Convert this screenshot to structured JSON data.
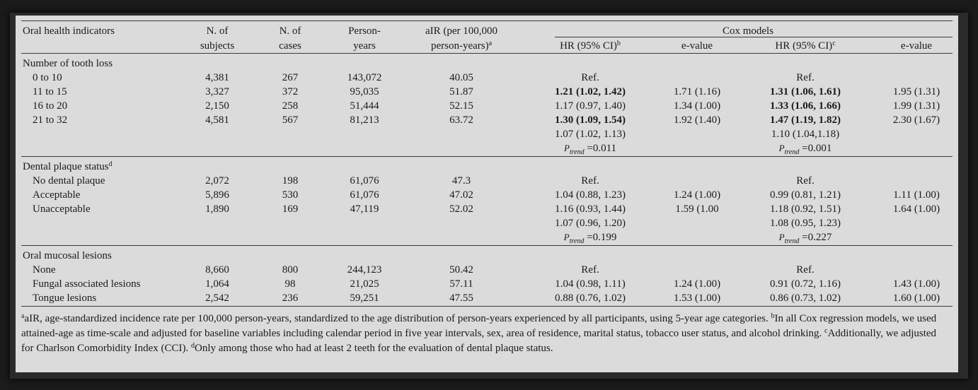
{
  "headers": {
    "indicator": "Oral health indicators",
    "subjects": [
      "N. of",
      "subjects"
    ],
    "cases": [
      "N. of",
      "cases"
    ],
    "person_years": [
      "Person-",
      "years"
    ],
    "air": [
      "aIR (per 100,000",
      "person-years)"
    ],
    "air_sup": "a",
    "cox": "Cox models",
    "hr1": "HR (95% CI)",
    "hr1_sup": "b",
    "ev1": "e-value",
    "hr2": "HR (95% CI)",
    "hr2_sup": "c",
    "ev2": "e-value"
  },
  "sections": {
    "tooth_loss": {
      "title": "Number of tooth loss",
      "rows": [
        {
          "label": "0 to 10",
          "subjects": "4,381",
          "cases": "267",
          "py": "143,072",
          "air": "40.05",
          "hr1": "Ref.",
          "ev1": "",
          "hr2": "Ref.",
          "ev2": ""
        },
        {
          "label": "11 to 15",
          "subjects": "3,327",
          "cases": "372",
          "py": "95,035",
          "air": "51.87",
          "hr1": "1.21 (1.02, 1.42)",
          "ev1": "1.71 (1.16)",
          "hr2": "1.31 (1.06, 1.61)",
          "ev2": "1.95 (1.31)"
        },
        {
          "label": "16 to 20",
          "subjects": "2,150",
          "cases": "258",
          "py": "51,444",
          "air": "52.15",
          "hr1": "1.17 (0.97, 1.40)",
          "ev1": "1.34 (1.00)",
          "hr2": "1.33 (1.06, 1.66)",
          "ev2": "1.99 (1.31)"
        },
        {
          "label": "21 to 32",
          "subjects": "4,581",
          "cases": "567",
          "py": "81,213",
          "air": "63.72",
          "hr1": "1.30 (1.09, 1.54)",
          "ev1": "1.92 (1.40)",
          "hr2": "1.47 (1.19, 1.82)",
          "ev2": "2.30 (1.67)"
        }
      ],
      "extra_hr1": "1.07 (1.02, 1.13)",
      "extra_hr2": "1.10 (1.04,1.18)",
      "trend1": "0.011",
      "trend2": "0.001"
    },
    "plaque": {
      "title": "Dental plaque status",
      "title_sup": "d",
      "rows": [
        {
          "label": "No dental plaque",
          "subjects": "2,072",
          "cases": "198",
          "py": "61,076",
          "air": "47.3",
          "hr1": "Ref.",
          "ev1": "",
          "hr2": "Ref.",
          "ev2": ""
        },
        {
          "label": "Acceptable",
          "subjects": "5,896",
          "cases": "530",
          "py": "61,076",
          "air": "47.02",
          "hr1": "1.04 (0.88, 1.23)",
          "ev1": "1.24 (1.00)",
          "hr2": "0.99 (0.81, 1.21)",
          "ev2": "1.11 (1.00)"
        },
        {
          "label": "Unacceptable",
          "subjects": "1,890",
          "cases": "169",
          "py": "47,119",
          "air": "52.02",
          "hr1": "1.16 (0.93, 1.44)",
          "ev1": "1.59 (1.00",
          "hr2": "1.18 (0.92, 1.51)",
          "ev2": "1.64 (1.00)"
        }
      ],
      "extra_hr1": "1.07 (0.96, 1.20)",
      "extra_hr2": "1.08 (0.95, 1.23)",
      "trend1": "0.199",
      "trend2": "0.227"
    },
    "mucosal": {
      "title": "Oral mucosal lesions",
      "rows": [
        {
          "label": "None",
          "subjects": "8,660",
          "cases": "800",
          "py": "244,123",
          "air": "50.42",
          "hr1": "Ref.",
          "ev1": "",
          "hr2": "Ref.",
          "ev2": ""
        },
        {
          "label": "Fungal associated lesions",
          "subjects": "1,064",
          "cases": "98",
          "py": "21,025",
          "air": "57.11",
          "hr1": "1.04 (0.98, 1.11)",
          "ev1": "1.24 (1.00)",
          "hr2": "0.91 (0.72, 1.16)",
          "ev2": "1.43 (1.00)"
        },
        {
          "label": "Tongue lesions",
          "subjects": "2,542",
          "cases": "236",
          "py": "59,251",
          "air": "47.55",
          "hr1": "0.88 (0.76, 1.02)",
          "ev1": "1.53 (1.00)",
          "hr2": "0.86 (0.73, 1.02)",
          "ev2": "1.60 (1.00)"
        }
      ]
    }
  },
  "ptrend_label": "P",
  "ptrend_sub": "trend",
  "ptrend_eq": " =",
  "footnote": {
    "a_mark": "a",
    "a_text": "aIR, age-standardized incidence rate per 100,000 person-years, standardized to the age distribution of person-years experienced by all participants, using 5-year age categories. ",
    "b_mark": "b",
    "b_text": "In all Cox regression models, we used attained-age as time-scale and adjusted for baseline variables including calendar period in five year intervals, sex, area of residence, marital status, tobacco user status, and alcohol drinking. ",
    "c_mark": "c",
    "c_text": "Additionally, we adjusted for Charlson Comorbidity Index (CCI). ",
    "d_mark": "d",
    "d_text": "Only among those who had at least 2 teeth for the evaluation of dental plaque status."
  }
}
